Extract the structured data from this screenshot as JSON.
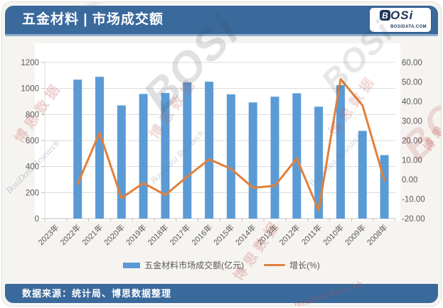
{
  "header": {
    "title": "五金材料 | 市场成交额",
    "logo": {
      "brand_b": "B",
      "brand_rest": "OSi",
      "domain": "BOSIDATA.COM"
    }
  },
  "footer": {
    "source": "数据来源：统计局、博思数据整理"
  },
  "watermark": {
    "cn": "博思数据",
    "en": "BosiData Research",
    "brand": "BOSi"
  },
  "colors": {
    "band_blue": "#3a699c",
    "bar_blue": "#5b9bd5",
    "line_orange": "#e0803c",
    "grid_gray": "#d9d9d9",
    "axis_gray": "#bfbfbf",
    "text_gray": "#595959",
    "logo_navy": "#1c3557",
    "logo_red": "#c0392b",
    "plot_bg": "#ffffff"
  },
  "chart_data": {
    "type": "bar+line combo",
    "title": "五金材料 | 市场成交额",
    "categories": [
      "2023年",
      "2022年",
      "2021年",
      "2020年",
      "2019年",
      "2018年",
      "2017年",
      "2016年",
      "2015年",
      "2014年",
      "2013年",
      "2012年",
      "2011年",
      "2010年",
      "2009年",
      "2008年"
    ],
    "series": [
      {
        "name": "五金材料市场成交额(亿元)",
        "type": "bar",
        "axis": "left",
        "values": [
          null,
          1068,
          1090,
          870,
          958,
          966,
          1046,
          1052,
          955,
          893,
          937,
          963,
          860,
          1025,
          674,
          488
        ]
      },
      {
        "name": "增长(%)",
        "type": "line",
        "axis": "right",
        "values": [
          null,
          -2.2,
          24.0,
          -9.5,
          -1.8,
          -7.9,
          1.5,
          10.4,
          5.5,
          -4.2,
          -3.2,
          10.8,
          -15.8,
          51.5,
          38.0,
          -0.4
        ]
      }
    ],
    "left_axis": {
      "min": 0,
      "max": 1200,
      "step": 200,
      "tick_labels": [
        "0",
        "200",
        "400",
        "600",
        "800",
        "1000",
        "1200"
      ]
    },
    "right_axis": {
      "min": -20,
      "max": 60,
      "step": 10,
      "tick_labels": [
        "-20.00",
        "-10.00",
        "0.00",
        "10.00",
        "20.00",
        "30.00",
        "40.00",
        "50.00",
        "60.00"
      ]
    },
    "legend_position": "bottom",
    "grid": true
  }
}
